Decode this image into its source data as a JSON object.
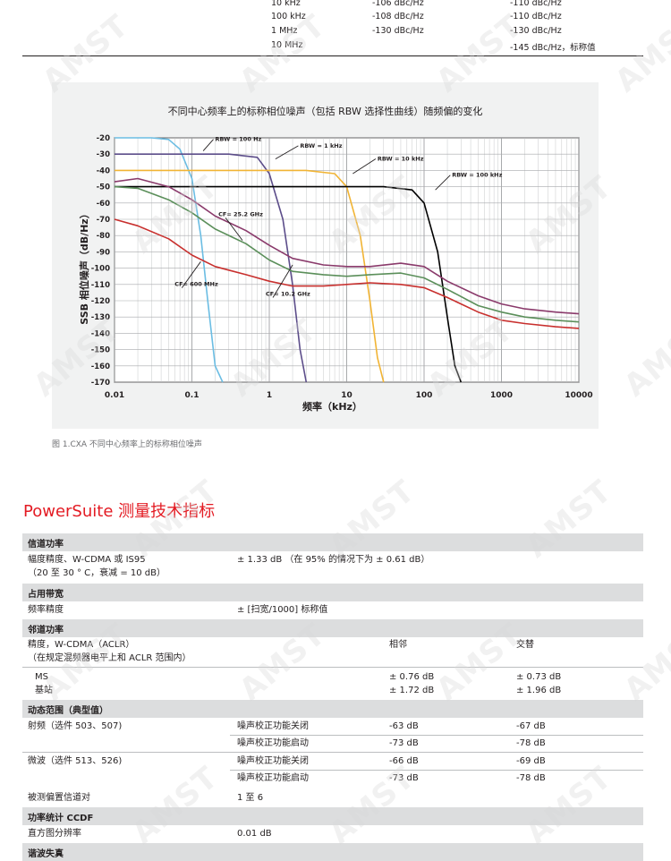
{
  "top_table": {
    "rows": [
      {
        "offset": "10 kHz",
        "a": "-106 dBc/Hz",
        "b": "-110 dBc/Hz"
      },
      {
        "offset": "100 kHz",
        "a": "-108 dBc/Hz",
        "b": "-110 dBc/Hz"
      },
      {
        "offset": "1 MHz",
        "a": "-130 dBc/Hz",
        "b": "-130 dBc/Hz"
      },
      {
        "offset": "10 MHz",
        "a": "",
        "b": "-145 dBc/Hz，标称值"
      }
    ]
  },
  "chart_data": {
    "type": "line",
    "title": "不同中心频率上的标称相位噪声（包括 RBW 选择性曲线）随频偏的变化",
    "xlabel": "频率（kHz）",
    "ylabel": "SSB 相位噪声（dB/Hz）",
    "x_scale": "log",
    "xlim": [
      0.01,
      10000
    ],
    "ylim": [
      -170,
      -20
    ],
    "x_ticks": [
      "0.01",
      "0.1",
      "1",
      "10",
      "100",
      "1000",
      "10000"
    ],
    "y_ticks": [
      "-20",
      "-30",
      "-40",
      "-50",
      "-60",
      "-70",
      "-80",
      "-90",
      "-100",
      "-110",
      "-120",
      "-130",
      "-140",
      "-150",
      "-160",
      "-170"
    ],
    "grid": true,
    "annotations": [
      "RBW = 100 Hz",
      "RBW = 1 kHz",
      "RBW = 10 kHz",
      "RBW = 100 kHz",
      "CF= 25.2 GHz",
      "CF= 600 MHz",
      "CF= 10.2 GHz"
    ],
    "series": [
      {
        "color": "#6bbde3",
        "x": [
          0.01,
          0.03,
          0.05,
          0.07,
          0.1,
          0.13,
          0.16,
          0.2,
          0.25
        ],
        "y": [
          -20,
          -20,
          -21,
          -27,
          -45,
          -80,
          -120,
          -160,
          -170
        ]
      },
      {
        "color": "#5c4d8a",
        "x": [
          0.01,
          0.1,
          0.3,
          0.7,
          1,
          1.5,
          2,
          2.5,
          3
        ],
        "y": [
          -30,
          -30,
          -30,
          -32,
          -42,
          -70,
          -110,
          -150,
          -170
        ]
      },
      {
        "color": "#f1b434",
        "x": [
          0.01,
          1,
          3,
          7,
          10,
          15,
          20,
          25,
          30
        ],
        "y": [
          -40,
          -40,
          -40,
          -42,
          -50,
          -80,
          -120,
          -155,
          -170
        ]
      },
      {
        "color": "#000000",
        "x": [
          0.01,
          10,
          30,
          70,
          100,
          150,
          200,
          250,
          300
        ],
        "y": [
          -50,
          -50,
          -50,
          -52,
          -60,
          -90,
          -130,
          -160,
          -170
        ]
      },
      {
        "color": "#8a3a6b",
        "x": [
          0.01,
          0.02,
          0.05,
          0.1,
          0.2,
          0.5,
          1,
          2,
          5,
          10,
          20,
          50,
          100,
          200,
          500,
          1000,
          2000,
          5000,
          10000
        ],
        "y": [
          -47,
          -45,
          -50,
          -58,
          -68,
          -77,
          -86,
          -94,
          -98,
          -99,
          -99,
          -97,
          -99,
          -108,
          -117,
          -122,
          -125,
          -127,
          -128
        ]
      },
      {
        "color": "#5b8f5a",
        "x": [
          0.01,
          0.02,
          0.05,
          0.1,
          0.2,
          0.5,
          1,
          2,
          5,
          10,
          20,
          50,
          100,
          200,
          500,
          1000,
          2000,
          5000,
          10000
        ],
        "y": [
          -50,
          -51,
          -58,
          -66,
          -76,
          -85,
          -95,
          -102,
          -104,
          -105,
          -104,
          -103,
          -106,
          -113,
          -123,
          -127,
          -130,
          -132,
          -133
        ]
      },
      {
        "color": "#c8302e",
        "x": [
          0.01,
          0.02,
          0.05,
          0.1,
          0.2,
          0.5,
          1,
          2,
          5,
          10,
          20,
          50,
          100,
          200,
          500,
          1000,
          2000,
          5000,
          10000
        ],
        "y": [
          -70,
          -74,
          -82,
          -92,
          -99,
          -104,
          -108,
          -111,
          -111,
          -110,
          -109,
          -110,
          -112,
          -118,
          -127,
          -132,
          -134,
          -136,
          -137
        ]
      }
    ]
  },
  "caption": "图 1.CXA 不同中心频率上的标称相位噪声",
  "section_title": "PowerSuite 测量技术指标",
  "spec": {
    "h1": "信道功率",
    "r1_l1": "幅度精度、W-CDMA 或 IS95",
    "r1_l2": "（20 至 30 ° C，衰减 = 10 dB）",
    "r1_v": "± 1.33 dB （在 95% 的情况下为 ± 0.61 dB）",
    "h2": "占用带宽",
    "r2_l": "频率精度",
    "r2_v": "± [扫宽/1000] 标称值",
    "h3": "邻道功率",
    "r3_l1": "精度，W-CDMA（ACLR）",
    "r3_l2": "（在规定混频器电平上和 ACLR 范围内）",
    "r3_adj": "相邻",
    "r3_alt": "交替",
    "r3_ms": "MS",
    "r3_bs": "基站",
    "r3_ms_adj": "± 0.76 dB",
    "r3_ms_alt": "± 0.73 dB",
    "r3_bs_adj": "± 1.72 dB",
    "r3_bs_alt": "± 1.96 dB",
    "h4": "动态范围（典型值）",
    "rf_l": "射频（选件 503、507)",
    "mw_l": "微波（选件 513、526)",
    "nc_off": "噪声校正功能关闭",
    "nc_on": "噪声校正功能启动",
    "rf_off_a": "-63 dB",
    "rf_off_b": "-67 dB",
    "rf_on_a": "-73 dB",
    "rf_on_b": "-78 dB",
    "mw_off_a": "-66 dB",
    "mw_off_b": "-69 dB",
    "mw_on_a": "-73 dB",
    "mw_on_b": "-78 dB",
    "r5_l": "被测偏置信道对",
    "r5_v": "1 至 6",
    "h6": "功率统计 CCDF",
    "r6_l": "直方图分辨率",
    "r6_v": "0.01 dB",
    "h7": "谐波失真"
  },
  "watermark": "AMST"
}
